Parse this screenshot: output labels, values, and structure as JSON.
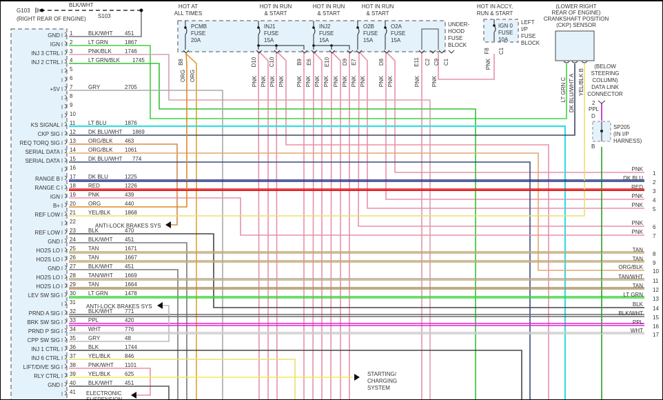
{
  "ground": {
    "name": "G103",
    "location": "(RIGHT REAR OF ENGINE)",
    "wire": "BLK/WHT",
    "splice": "S103"
  },
  "pcm_pins": [
    {
      "n": "1",
      "label": "GND",
      "wire": "BLK/WHT",
      "circuit": "451",
      "color": "#555555"
    },
    {
      "n": "2",
      "label": "IGN",
      "wire": "LT GRN",
      "circuit": "1867",
      "color": "#3ed43e"
    },
    {
      "n": "3",
      "label": "INJ 3 CTRL",
      "wire": "PNK/BLK",
      "circuit": "1746",
      "color": "#d8a0b0"
    },
    {
      "n": "4",
      "label": "INJ 2 CTRL",
      "wire": "LT GRN/BLK",
      "circuit": "1745",
      "color": "#33c233"
    },
    {
      "n": "5",
      "label": "",
      "wire": "",
      "circuit": "",
      "color": ""
    },
    {
      "n": "6",
      "label": "",
      "wire": "",
      "circuit": "",
      "color": ""
    },
    {
      "n": "7",
      "label": "+5V",
      "wire": "GRY",
      "circuit": "2705",
      "color": "#aaaaaa"
    },
    {
      "n": "8",
      "label": "",
      "wire": "",
      "circuit": "",
      "color": ""
    },
    {
      "n": "9",
      "label": "",
      "wire": "",
      "circuit": "",
      "color": ""
    },
    {
      "n": "10",
      "label": "",
      "wire": "",
      "circuit": "",
      "color": ""
    },
    {
      "n": "11",
      "label": "KS SIGNAL",
      "wire": "LT BLU",
      "circuit": "1876",
      "color": "#33dde0"
    },
    {
      "n": "12",
      "label": "CKP SIG",
      "wire": "DK BLU/WHT",
      "circuit": "1869",
      "color": "#3a4660"
    },
    {
      "n": "13",
      "label": "REQ TORQ SIG",
      "wire": "ORG/BLK",
      "circuit": "463",
      "color": "#d08a4a"
    },
    {
      "n": "14",
      "label": "SERIAL DATA",
      "wire": "ORG/BLK",
      "circuit": "1061",
      "color": "#e0a870"
    },
    {
      "n": "15",
      "label": "SERIAL DATA",
      "wire": "DK BLU/WHT",
      "circuit": "774",
      "color": "#3a4a78"
    },
    {
      "n": "16",
      "label": "",
      "wire": "",
      "circuit": "",
      "color": ""
    },
    {
      "n": "17",
      "label": "RANGE B",
      "wire": "DK BLU",
      "circuit": "1225",
      "color": "#222e80"
    },
    {
      "n": "18",
      "label": "RANGE C",
      "wire": "RED",
      "circuit": "1226",
      "color": "#e02020"
    },
    {
      "n": "19",
      "label": "IGN",
      "wire": "PNK",
      "circuit": "439",
      "color": "#e890a8"
    },
    {
      "n": "20",
      "label": "B+",
      "wire": "ORG",
      "circuit": "440",
      "color": "#e08820"
    },
    {
      "n": "21",
      "label": "REF LOW",
      "wire": "YEL/BLK",
      "circuit": "1868",
      "color": "#e8e070"
    },
    {
      "n": "22",
      "label": "",
      "wire": "",
      "circuit": "",
      "color": ""
    },
    {
      "n": "23",
      "label": "REF LOW",
      "wire": "BLK",
      "circuit": "470",
      "color": "#444444"
    },
    {
      "n": "24",
      "label": "GND",
      "wire": "BLK/WHT",
      "circuit": "451",
      "color": "#777777"
    },
    {
      "n": "25",
      "label": "HO2S LO",
      "wire": "TAN",
      "circuit": "1671",
      "color": "#c0a878"
    },
    {
      "n": "26",
      "label": "HO2S LO",
      "wire": "TAN",
      "circuit": "1667",
      "color": "#c0a878"
    },
    {
      "n": "27",
      "label": "GND",
      "wire": "BLK/WHT",
      "circuit": "451",
      "color": "#777777"
    },
    {
      "n": "28",
      "label": "HO2S LO",
      "wire": "TAN/WHT",
      "circuit": "1669",
      "color": "#b8a888"
    },
    {
      "n": "29",
      "label": "HO2S LO",
      "wire": "TAN",
      "circuit": "1664",
      "color": "#a89060"
    },
    {
      "n": "30",
      "label": "LEV SW SIG",
      "wire": "LT GRN",
      "circuit": "1478",
      "color": "#3ed43e"
    },
    {
      "n": "31",
      "label": "",
      "wire": "",
      "circuit": "",
      "color": ""
    },
    {
      "n": "32",
      "label": "PRND A SIG",
      "wire": "BLK/WHT",
      "circuit": "771",
      "color": "#666666"
    },
    {
      "n": "33",
      "label": "BRK SW SIG",
      "wire": "PPL",
      "circuit": "420",
      "color": "#dd22cc"
    },
    {
      "n": "34",
      "label": "PRND P SIG",
      "wire": "WHT",
      "circuit": "776",
      "color": "#cccccc"
    },
    {
      "n": "35",
      "label": "CPP SW SIG",
      "wire": "GRY",
      "circuit": "48",
      "color": "#bbbbbb"
    },
    {
      "n": "36",
      "label": "INJ 1 CTRL",
      "wire": "BLK",
      "circuit": "1744",
      "color": "#444444"
    },
    {
      "n": "37",
      "label": "INJ 6 CTRL",
      "wire": "YEL/BLK",
      "circuit": "846",
      "color": "#e8e070"
    },
    {
      "n": "38",
      "label": "LIFT/DIVE SIG",
      "wire": "PNK/WHT",
      "circuit": "1101",
      "color": "#e890a8"
    },
    {
      "n": "39",
      "label": "RLY CTRL",
      "wire": "YEL/BLK",
      "circuit": "625",
      "color": "#f0ec50"
    },
    {
      "n": "40",
      "label": "GND",
      "wire": "BLK/WHT",
      "circuit": "451",
      "color": "#555555"
    },
    {
      "n": "41",
      "label": "",
      "wire": "",
      "circuit": "",
      "color": ""
    }
  ],
  "destinations": {
    "abs_1": "ANTI-LOCK BRAKES SYS",
    "abs_2": "ANTI-LOCK BRAKES SYS",
    "suspension": [
      "ELECTRONIC",
      "SUSPENSION"
    ],
    "charging": [
      "STARTING/",
      "CHARGING",
      "SYSTEM"
    ]
  },
  "fuse_block": {
    "hot_labels": [
      [
        "HOT AT",
        "ALL TIMES"
      ],
      [
        "HOT IN RUN",
        "& START"
      ],
      [
        "HOT IN RUN",
        "& START"
      ],
      [
        "HOT IN RUN",
        "& START"
      ]
    ],
    "fuses": [
      {
        "name": "PCMB",
        "type": "FUSE",
        "rating": "20A"
      },
      {
        "name": "INJ1",
        "type": "FUSE",
        "rating": "15A"
      },
      {
        "name": "INJ2",
        "type": "FUSE",
        "rating": "15A"
      },
      {
        "name": "O2B",
        "type": "FUSE",
        "rating": "15A"
      },
      {
        "name": "O2A",
        "type": "FUSE",
        "rating": "15A"
      }
    ],
    "label": [
      "UNDER-",
      "HOOD",
      "FUSE",
      "BLOCK"
    ],
    "terminals": [
      "B8",
      "D10",
      "C10",
      "B9",
      "E6",
      "E10",
      "D9",
      "E7",
      "D8",
      "E11",
      "C2",
      "C9",
      "C1"
    ],
    "wire_label": "PNK",
    "org_label": "ORG"
  },
  "ip_fuse_block": {
    "hot_label": [
      "HOT IN ACCY,",
      "RUN & START"
    ],
    "fuse": {
      "name": "IGN 0",
      "type": "FUSE",
      "rating": "10A"
    },
    "label": [
      "LEFT",
      "I/P",
      "FUSE",
      "BLOCK"
    ],
    "terminals": [
      "F8",
      "C1"
    ],
    "wire_label": "PNK"
  },
  "ckp_sensor": {
    "label": [
      "(LOWER RIGHT",
      "REAR OF ENGINE)",
      "CRANKSHAFT POSITION",
      "(CKP) SENSOR"
    ],
    "pins": [
      "LT GRN  C",
      "DK BLU/WHT  A",
      "YEL/BLK  B"
    ]
  },
  "dlc": {
    "label": [
      "(BELOW",
      "STEERING",
      "COLUMN)",
      "DATA LINK",
      "CONNECTOR"
    ],
    "pin": "2",
    "wire": "PPL",
    "pin_d": "D",
    "pin_b": "B",
    "splice": [
      "SP205",
      "(IN I/P",
      "HARNESS)"
    ]
  },
  "outputs": [
    {
      "n": "1",
      "wire": "PNK",
      "color": "#e890a8"
    },
    {
      "n": "2",
      "wire": "DK BLU",
      "color": "#222e80"
    },
    {
      "n": "3",
      "wire": "RED",
      "color": "#e02020"
    },
    {
      "n": "4",
      "wire": "PNK",
      "color": "#e890a8"
    },
    {
      "n": "5",
      "wire": "PNK",
      "color": "#e890a8"
    },
    {
      "n": "6",
      "wire": "PNK",
      "color": "#e890a8"
    },
    {
      "n": "7",
      "wire": "PNK",
      "color": "#e890a8"
    },
    {
      "n": "8",
      "wire": "TAN",
      "color": "#c0a878"
    },
    {
      "n": "9",
      "wire": "TAN",
      "color": "#c0a878"
    },
    {
      "n": "10",
      "wire": "ORG/BLK",
      "color": "#e0a870"
    },
    {
      "n": "11",
      "wire": "TAN/WHT",
      "color": "#b8a888"
    },
    {
      "n": "12",
      "wire": "TAN",
      "color": "#a89060"
    },
    {
      "n": "13",
      "wire": "LT GRN",
      "color": "#3ed43e"
    },
    {
      "n": "14",
      "wire": "BLK",
      "color": "#444444"
    },
    {
      "n": "15",
      "wire": "BLK/WHT",
      "color": "#666666"
    },
    {
      "n": "16",
      "wire": "PPL",
      "color": "#dd22cc"
    },
    {
      "n": "17",
      "wire": "WHT",
      "color": "#cccccc"
    }
  ],
  "colors": {
    "module_fill": "#e4f2fb",
    "pnk": "#e890a8",
    "dk_green": "#2a9a2a",
    "dashed": "#888888"
  }
}
